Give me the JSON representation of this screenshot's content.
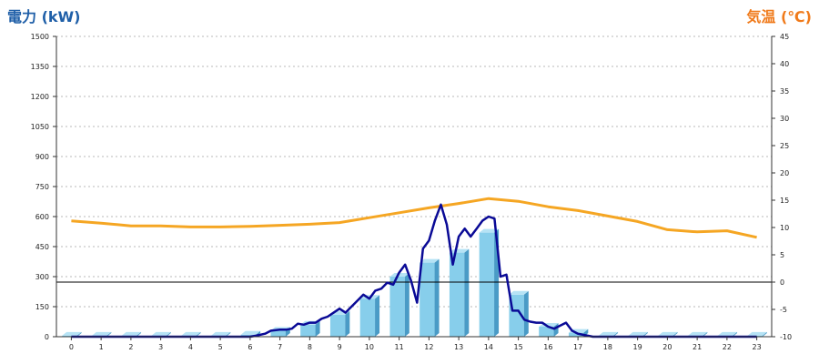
{
  "chart_data": {
    "type": "bar+line",
    "left_axis_title": "電力 (kW)",
    "right_axis_title": "気温 (℃)",
    "left_title_color": "#1f5fa8",
    "right_title_color": "#f07a1a",
    "categories": [
      "0",
      "1",
      "2",
      "3",
      "4",
      "5",
      "6",
      "7",
      "8",
      "9",
      "10",
      "11",
      "12",
      "13",
      "14",
      "15",
      "16",
      "17",
      "18",
      "19",
      "20",
      "21",
      "22",
      "23"
    ],
    "y_left": {
      "min": 0,
      "max": 1500,
      "ticks": [
        0,
        150,
        300,
        450,
        600,
        750,
        900,
        1050,
        1200,
        1350,
        1500
      ]
    },
    "y_right": {
      "min": -10,
      "max": 45,
      "ticks": [
        -10,
        -5,
        0,
        5,
        10,
        15,
        20,
        25,
        30,
        35,
        40,
        45
      ]
    },
    "grid": true,
    "bars": {
      "axis": "left",
      "color": "#87ceeb",
      "values": [
        5,
        5,
        5,
        5,
        5,
        5,
        10,
        30,
        60,
        110,
        190,
        300,
        370,
        420,
        520,
        210,
        50,
        20,
        5,
        5,
        5,
        5,
        5,
        5
      ]
    },
    "power_line": {
      "axis": "left",
      "color": "#0a0a96",
      "x": [
        0,
        1,
        2,
        3,
        4,
        5,
        6,
        6.2,
        6.5,
        6.7,
        7,
        7.2,
        7.4,
        7.6,
        7.8,
        8,
        8.2,
        8.4,
        8.6,
        8.8,
        9,
        9.2,
        9.4,
        9.6,
        9.8,
        10,
        10.2,
        10.4,
        10.6,
        10.8,
        11,
        11.2,
        11.4,
        11.6,
        11.8,
        12,
        12.2,
        12.4,
        12.6,
        12.8,
        13,
        13.2,
        13.4,
        13.6,
        13.8,
        14,
        14.2,
        14.4,
        14.6,
        14.8,
        15,
        15.2,
        15.4,
        15.6,
        15.8,
        16,
        16.2,
        16.4,
        16.6,
        16.8,
        17,
        17.5,
        18,
        19,
        20,
        21,
        22,
        23
      ],
      "y": [
        0,
        0,
        0,
        0,
        0,
        0,
        0,
        5,
        15,
        30,
        35,
        35,
        40,
        65,
        60,
        70,
        70,
        90,
        100,
        120,
        140,
        120,
        150,
        180,
        210,
        190,
        230,
        240,
        270,
        260,
        320,
        360,
        280,
        170,
        440,
        480,
        580,
        660,
        560,
        360,
        500,
        540,
        500,
        540,
        580,
        600,
        590,
        300,
        310,
        130,
        130,
        85,
        75,
        70,
        70,
        50,
        40,
        55,
        70,
        30,
        15,
        0,
        0,
        0,
        0,
        0,
        0,
        0
      ]
    },
    "temperature_line": {
      "axis": "right",
      "color": "#f5a623",
      "x": [
        0,
        1,
        2,
        3,
        4,
        5,
        6,
        7,
        8,
        9,
        10,
        11,
        12,
        13,
        14,
        15,
        16,
        17,
        18,
        19,
        20,
        21,
        22,
        23
      ],
      "y": [
        11.2,
        10.8,
        10.3,
        10.3,
        10.1,
        10.1,
        10.2,
        10.4,
        10.6,
        10.9,
        11.8,
        12.7,
        13.6,
        14.4,
        15.3,
        14.8,
        13.8,
        13.1,
        12.1,
        11.1,
        9.6,
        9.2,
        9.4,
        8.2
      ]
    },
    "reference_line": {
      "axis": "right",
      "value": 0,
      "color": "#000000"
    }
  }
}
